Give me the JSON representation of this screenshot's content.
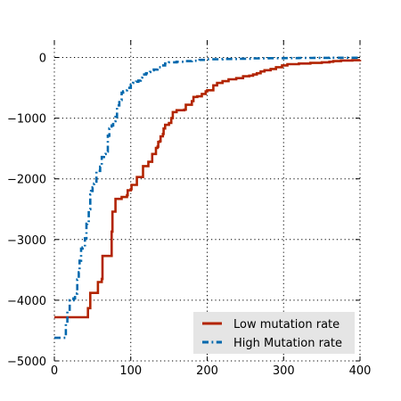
{
  "chart_data": {
    "type": "line",
    "title": "",
    "xlabel": "",
    "ylabel": "",
    "xlim": [
      0,
      400
    ],
    "ylim": [
      -5000,
      0
    ],
    "xticks": [
      0,
      100,
      200,
      300,
      400
    ],
    "xtick_labels": [
      "0",
      "100",
      "200",
      "300",
      "400"
    ],
    "yticks": [
      0,
      -1000,
      -2000,
      -3000,
      -4000,
      -5000
    ],
    "ytick_labels": [
      "0",
      "−1000",
      "−2000",
      "−3000",
      "−4000",
      "−5000"
    ],
    "grid": true,
    "legend_position": "lower-right",
    "legend_background": "#e5e5e5",
    "series": [
      {
        "name": "Low mutation rate",
        "color": "#b22400",
        "style": "solid",
        "x": [
          0,
          43,
          44,
          47,
          52,
          53,
          57,
          62,
          63,
          69,
          75,
          76,
          77,
          79,
          80,
          87,
          88,
          95,
          96,
          100,
          101,
          107,
          108,
          115,
          116,
          122,
          123,
          127,
          128,
          132,
          133,
          135,
          136,
          138,
          139,
          142,
          143,
          145,
          150,
          153,
          155,
          160,
          163,
          170,
          172,
          180,
          182,
          187,
          193,
          198,
          200,
          208,
          213,
          220,
          228,
          238,
          247,
          255,
          260,
          265,
          270,
          275,
          283,
          290,
          298,
          305,
          313,
          320,
          335,
          350,
          360,
          365,
          375,
          390,
          400
        ],
        "values": [
          -4280,
          -4280,
          -4130,
          -3880,
          -3880,
          -3880,
          -3700,
          -3650,
          -3270,
          -3270,
          -2870,
          -2540,
          -2540,
          -2540,
          -2330,
          -2330,
          -2300,
          -2270,
          -2190,
          -2170,
          -2100,
          -2100,
          -1970,
          -1970,
          -1790,
          -1790,
          -1720,
          -1720,
          -1590,
          -1590,
          -1490,
          -1470,
          -1390,
          -1380,
          -1300,
          -1260,
          -1170,
          -1110,
          -1080,
          -1000,
          -900,
          -870,
          -870,
          -860,
          -780,
          -720,
          -650,
          -640,
          -600,
          -560,
          -540,
          -460,
          -420,
          -390,
          -360,
          -340,
          -310,
          -300,
          -280,
          -260,
          -230,
          -210,
          -190,
          -160,
          -130,
          -110,
          -110,
          -100,
          -90,
          -80,
          -70,
          -60,
          -50,
          -45,
          -40
        ]
      },
      {
        "name": "High Mutation rate",
        "color": "#0068ad",
        "style": "dash-dot",
        "x": [
          0,
          14,
          15,
          17,
          20,
          23,
          25,
          27,
          30,
          32,
          33,
          35,
          37,
          40,
          42,
          43,
          45,
          47,
          48,
          50,
          52,
          55,
          57,
          60,
          62,
          65,
          67,
          70,
          72,
          73,
          75,
          77,
          80,
          82,
          85,
          88,
          90,
          92,
          95,
          100,
          103,
          105,
          107,
          110,
          113,
          115,
          120,
          125,
          128,
          130,
          135,
          140,
          145,
          150,
          160,
          170,
          180,
          190,
          200,
          220,
          240,
          260,
          280,
          300,
          320,
          340,
          360,
          380,
          400
        ],
        "values": [
          -4620,
          -4620,
          -4380,
          -4180,
          -4000,
          -4000,
          -3970,
          -3890,
          -3660,
          -3540,
          -3350,
          -3150,
          -3130,
          -2980,
          -2740,
          -2720,
          -2500,
          -2260,
          -2200,
          -2140,
          -2080,
          -1880,
          -1870,
          -1800,
          -1640,
          -1590,
          -1550,
          -1290,
          -1170,
          -1160,
          -1120,
          -1050,
          -980,
          -790,
          -700,
          -580,
          -560,
          -540,
          -500,
          -450,
          -420,
          -410,
          -400,
          -380,
          -330,
          -280,
          -260,
          -240,
          -210,
          -200,
          -160,
          -130,
          -100,
          -80,
          -70,
          -60,
          -55,
          -40,
          -30,
          -25,
          -20,
          -15,
          -12,
          -10,
          -8,
          -6,
          -5,
          -4,
          -3
        ]
      }
    ]
  }
}
